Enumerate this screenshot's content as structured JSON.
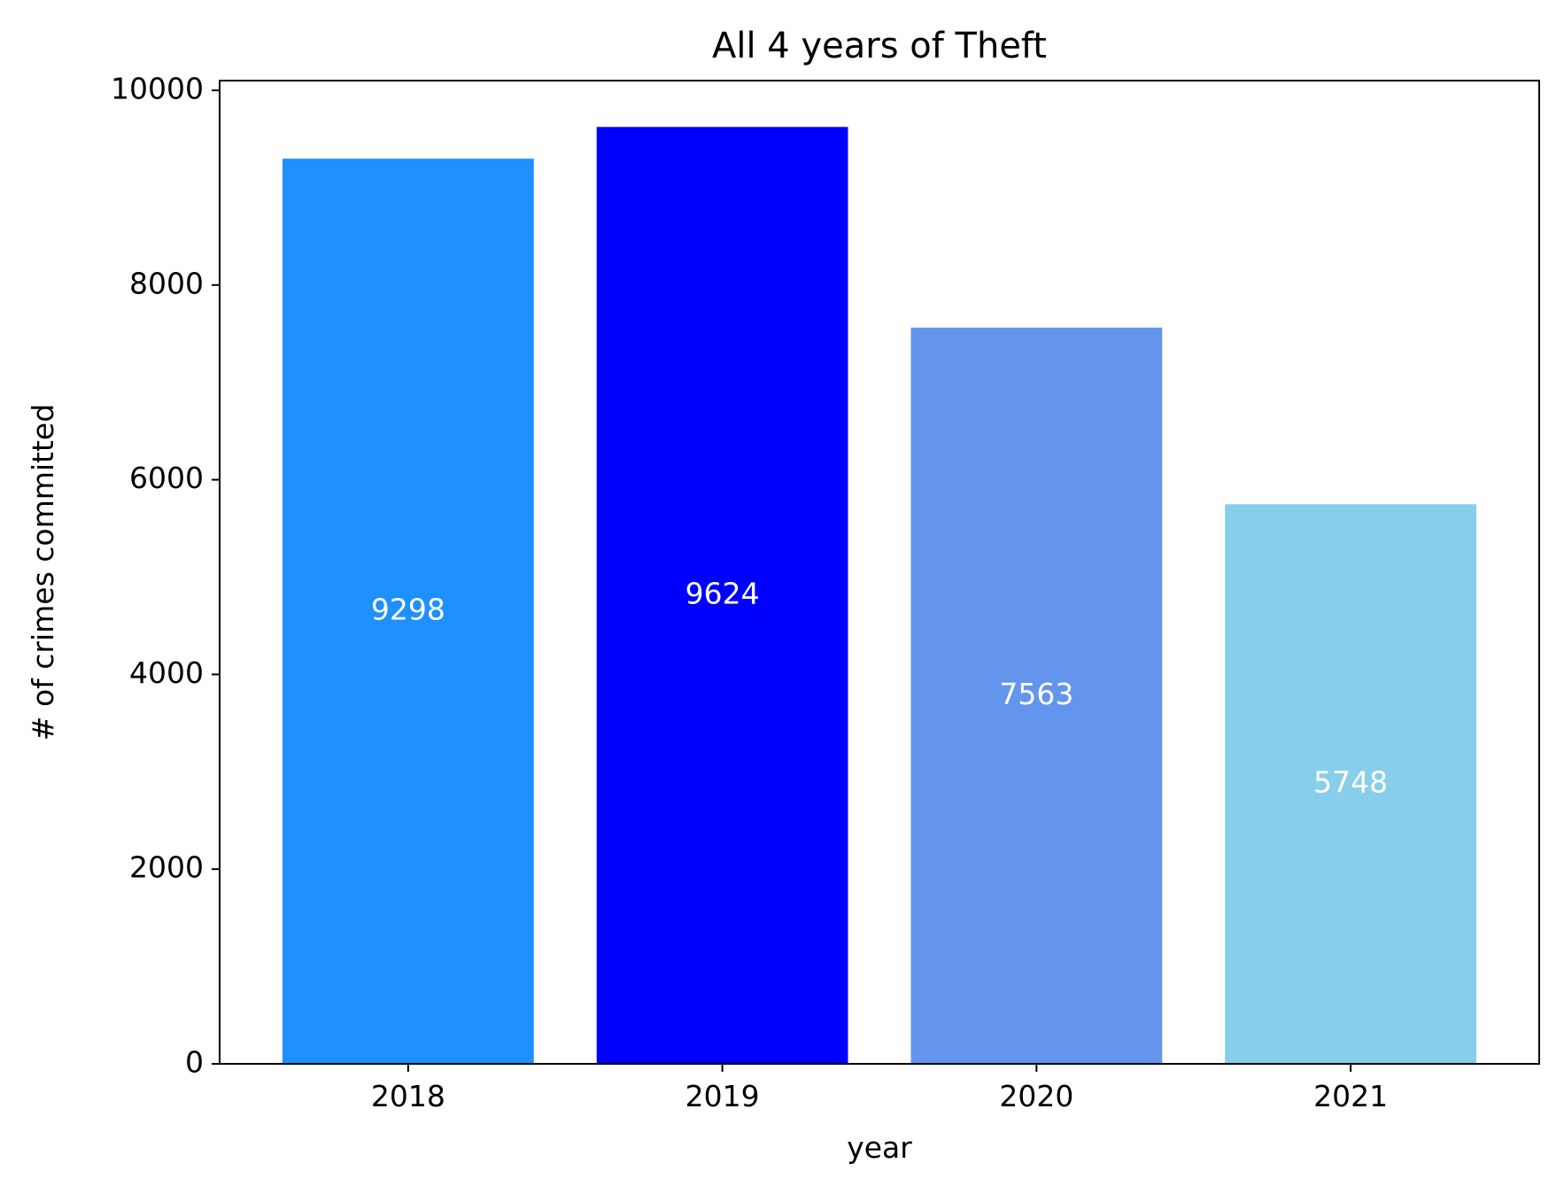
{
  "chart_data": {
    "type": "bar",
    "title": "All 4 years of Theft",
    "xlabel": "year",
    "ylabel": "# of crimes committed",
    "categories": [
      "2018",
      "2019",
      "2020",
      "2021"
    ],
    "values": [
      9298,
      9624,
      7563,
      5748
    ],
    "value_labels": [
      "9298",
      "9624",
      "7563",
      "5748"
    ],
    "bar_colors": [
      "#1e90ff",
      "#0000ff",
      "#6495ed",
      "#87ceeb"
    ],
    "label_color": "#ffffff",
    "ylim": [
      0,
      10100
    ],
    "yticks": [
      0,
      2000,
      4000,
      6000,
      8000,
      10000
    ],
    "ytick_labels": [
      "0",
      "2000",
      "4000",
      "6000",
      "8000",
      "10000"
    ],
    "grid": false,
    "legend": "none"
  }
}
